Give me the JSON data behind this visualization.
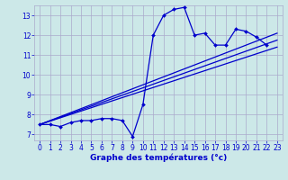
{
  "xlabel": "Graphe des températures (°c)",
  "bg_color": "#cce8e8",
  "grid_color": "#aaaacc",
  "line_color": "#0000cc",
  "xlim": [
    -0.5,
    23.5
  ],
  "ylim": [
    6.7,
    13.5
  ],
  "xticks": [
    0,
    1,
    2,
    3,
    4,
    5,
    6,
    7,
    8,
    9,
    10,
    11,
    12,
    13,
    14,
    15,
    16,
    17,
    18,
    19,
    20,
    21,
    22,
    23
  ],
  "yticks": [
    7,
    8,
    9,
    10,
    11,
    12,
    13
  ],
  "hours": [
    0,
    1,
    2,
    3,
    4,
    5,
    6,
    7,
    8,
    9,
    10,
    11,
    12,
    13,
    14,
    15,
    16,
    17,
    18,
    19,
    20,
    21,
    22
  ],
  "main_temps": [
    7.5,
    7.5,
    7.4,
    7.6,
    7.7,
    7.7,
    7.8,
    7.8,
    7.7,
    6.9,
    8.5,
    12.0,
    13.0,
    13.3,
    13.4,
    12.0,
    12.1,
    11.5,
    11.5,
    12.3,
    12.2,
    11.9,
    11.5
  ],
  "trend1_x": [
    0,
    23
  ],
  "trend1_y": [
    7.5,
    11.4
  ],
  "trend2_x": [
    0,
    23
  ],
  "trend2_y": [
    7.5,
    11.75
  ],
  "trend3_x": [
    0,
    23
  ],
  "trend3_y": [
    7.5,
    12.1
  ],
  "xlabel_fontsize": 6.5,
  "tick_fontsize": 5.5,
  "linewidth": 0.9,
  "markersize": 2.0
}
